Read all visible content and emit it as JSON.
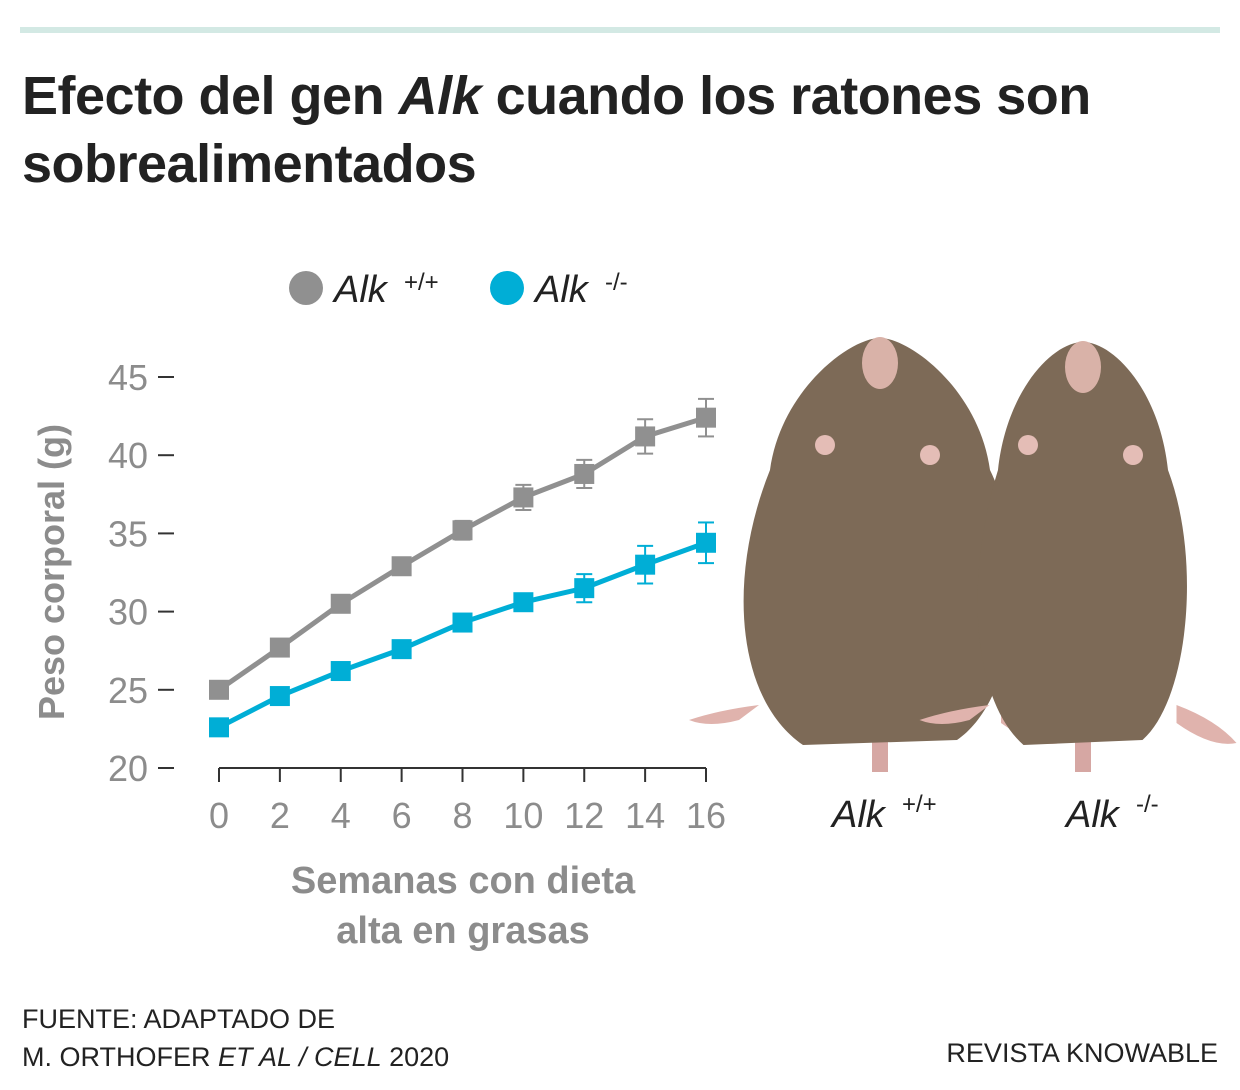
{
  "title_prefix": "Efecto del gen ",
  "title_gene": "Alk",
  "title_suffix": " cuando los ratones son sobrealimentados",
  "source_line1": "FUENTE: ADAPTADO DE",
  "source_line2_a": "M. ORTHOFER ",
  "source_line2_b": "ET AL / CELL",
  "source_line2_c": " 2020",
  "credit": "REVISTA KNOWABLE",
  "mouse_labels": [
    {
      "gene": "Alk",
      "sup": "+/+"
    },
    {
      "gene": "Alk",
      "sup": "-/-"
    }
  ],
  "chart_data": {
    "type": "line",
    "title": "",
    "xlabel_lines": [
      "Semanas con dieta",
      "alta en grasas"
    ],
    "ylabel": "Peso corporal (g)",
    "x": [
      0,
      2,
      4,
      6,
      8,
      10,
      12,
      14,
      16
    ],
    "xticks": [
      "0",
      "2",
      "4",
      "6",
      "8",
      "10",
      "12",
      "14",
      "16"
    ],
    "yticks": [
      "20",
      "25",
      "30",
      "35",
      "40",
      "45"
    ],
    "xlim": [
      0,
      16
    ],
    "ylim": [
      20,
      45
    ],
    "legend_position": "top",
    "series": [
      {
        "name": "Alk",
        "sup": "+/+",
        "color": "#909090",
        "values": [
          25.0,
          27.7,
          30.5,
          32.9,
          35.2,
          37.3,
          38.8,
          41.2,
          42.4
        ],
        "errors": [
          0.2,
          0.3,
          0.4,
          0.4,
          0.6,
          0.8,
          0.9,
          1.1,
          1.2
        ]
      },
      {
        "name": "Alk",
        "sup": "-/-",
        "color": "#00aed6",
        "values": [
          22.6,
          24.6,
          26.2,
          27.6,
          29.3,
          30.6,
          31.5,
          33.0,
          34.4
        ],
        "errors": [
          0.2,
          0.3,
          0.3,
          0.4,
          0.4,
          0.5,
          0.9,
          1.2,
          1.3
        ]
      }
    ]
  }
}
